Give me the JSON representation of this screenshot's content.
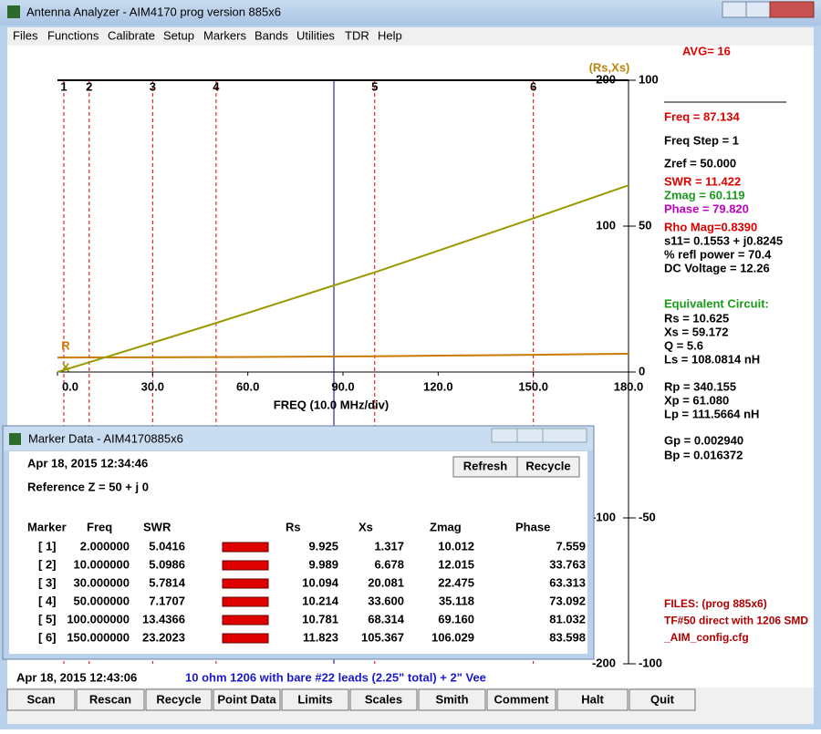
{
  "window": {
    "title": "Antenna Analyzer - AIM4170   prog version 885x6"
  },
  "menu": [
    "Files",
    "Functions",
    "Calibrate",
    "Setup",
    "Markers",
    "Bands",
    "Utilities",
    "TDR",
    "Help"
  ],
  "avg": "AVG=  16",
  "chart_data": {
    "type": "line",
    "axis_label": "(Rs,Xs)",
    "xlabel": "FREQ (10.0 MHz/div)",
    "x": [
      0,
      2,
      10,
      30,
      50,
      100,
      150,
      180
    ],
    "series": [
      {
        "name": "R",
        "color": "#cc7a00",
        "values": [
          9.9,
          9.925,
          9.989,
          10.094,
          10.214,
          10.781,
          11.823,
          12.5
        ]
      },
      {
        "name": "X",
        "color": "#999900",
        "values": [
          0,
          1.317,
          6.678,
          20.081,
          33.6,
          68.314,
          105.367,
          128
        ]
      }
    ],
    "xlim": [
      0,
      180
    ],
    "xticks": [
      {
        "value": 0,
        "label": "0.0"
      },
      {
        "value": 30,
        "label": "30.0"
      },
      {
        "value": 60,
        "label": "60.0"
      },
      {
        "value": 90,
        "label": "90.0"
      },
      {
        "value": 120,
        "label": "120.0"
      },
      {
        "value": 150,
        "label": "150.0"
      },
      {
        "value": 180,
        "label": "180.0"
      }
    ],
    "ylim": [
      -200,
      200
    ],
    "yticks": [
      -200,
      -100,
      100,
      200
    ],
    "y2lim": [
      -100,
      100
    ],
    "y2ticks": [
      -100,
      -50,
      0,
      50,
      100
    ],
    "markers": {
      "labels": [
        "1",
        "2",
        "3",
        "4",
        "5",
        "6"
      ],
      "x": [
        2,
        10,
        30,
        50,
        100,
        150
      ],
      "color": "#dd0000"
    },
    "cursor": 87.134
  },
  "readout": [
    "Freq = 87.134",
    "Freq Step = 1",
    "Zref =  50.000",
    "SWR  =  11.422",
    "Zmag =  60.119",
    "Phase =  79.820",
    "Rho Mag=0.8390",
    "s11= 0.1553 + j0.8245",
    "% refl power = 70.4",
    "DC Voltage =  12.26",
    "Equivalent Circuit:",
    "Rs =   10.625",
    "Xs =   59.172",
    "Q =   5.6",
    "Ls =  108.0814  nH",
    "Rp =  340.155",
    "Xp =   61.080",
    "Lp =  111.5664  nH",
    "Gp =  0.002940",
    "Bp =  0.016372"
  ],
  "files": [
    "FILES:  (prog 885x6)",
    "TF#50 direct with 1206 SMD",
    "_AIM_config.cfg"
  ],
  "marker_window": {
    "title": "Marker Data -  AIM4170885x6",
    "date": "Apr 18, 2015   12:34:46",
    "reference": "Reference Z = 50   + j 0",
    "buttons": [
      "Refresh",
      "Recycle"
    ],
    "headers": [
      "Marker",
      "Freq",
      "SWR",
      "Rs",
      "Xs",
      "Zmag",
      "Phase"
    ],
    "rows": [
      [
        "[  1]",
        "2.000000",
        "5.0416",
        "9.925",
        "1.317",
        "10.012",
        "7.559"
      ],
      [
        "[  2]",
        "10.000000",
        "5.0986",
        "9.989",
        "6.678",
        "12.015",
        "33.763"
      ],
      [
        "[  3]",
        "30.000000",
        "5.7814",
        "10.094",
        "20.081",
        "22.475",
        "63.313"
      ],
      [
        "[  4]",
        "50.000000",
        "7.1707",
        "10.214",
        "33.600",
        "35.118",
        "73.092"
      ],
      [
        "[  5]",
        "100.000000",
        "13.4366",
        "10.781",
        "68.314",
        "69.160",
        "81.032"
      ],
      [
        "[  6]",
        "150.000000",
        "23.2023",
        "11.823",
        "105.367",
        "106.029",
        "83.598"
      ]
    ]
  },
  "status": {
    "date": "Apr 18, 2015  12:43:06",
    "note": "10 ohm 1206 with bare #22 leads (2.25\" total) + 2\" Vee"
  },
  "buttons": [
    "Scan",
    "Rescan",
    "Recycle",
    "Point Data",
    "Limits",
    "Scales",
    "Smith",
    "Comment",
    "Halt",
    "Quit"
  ]
}
